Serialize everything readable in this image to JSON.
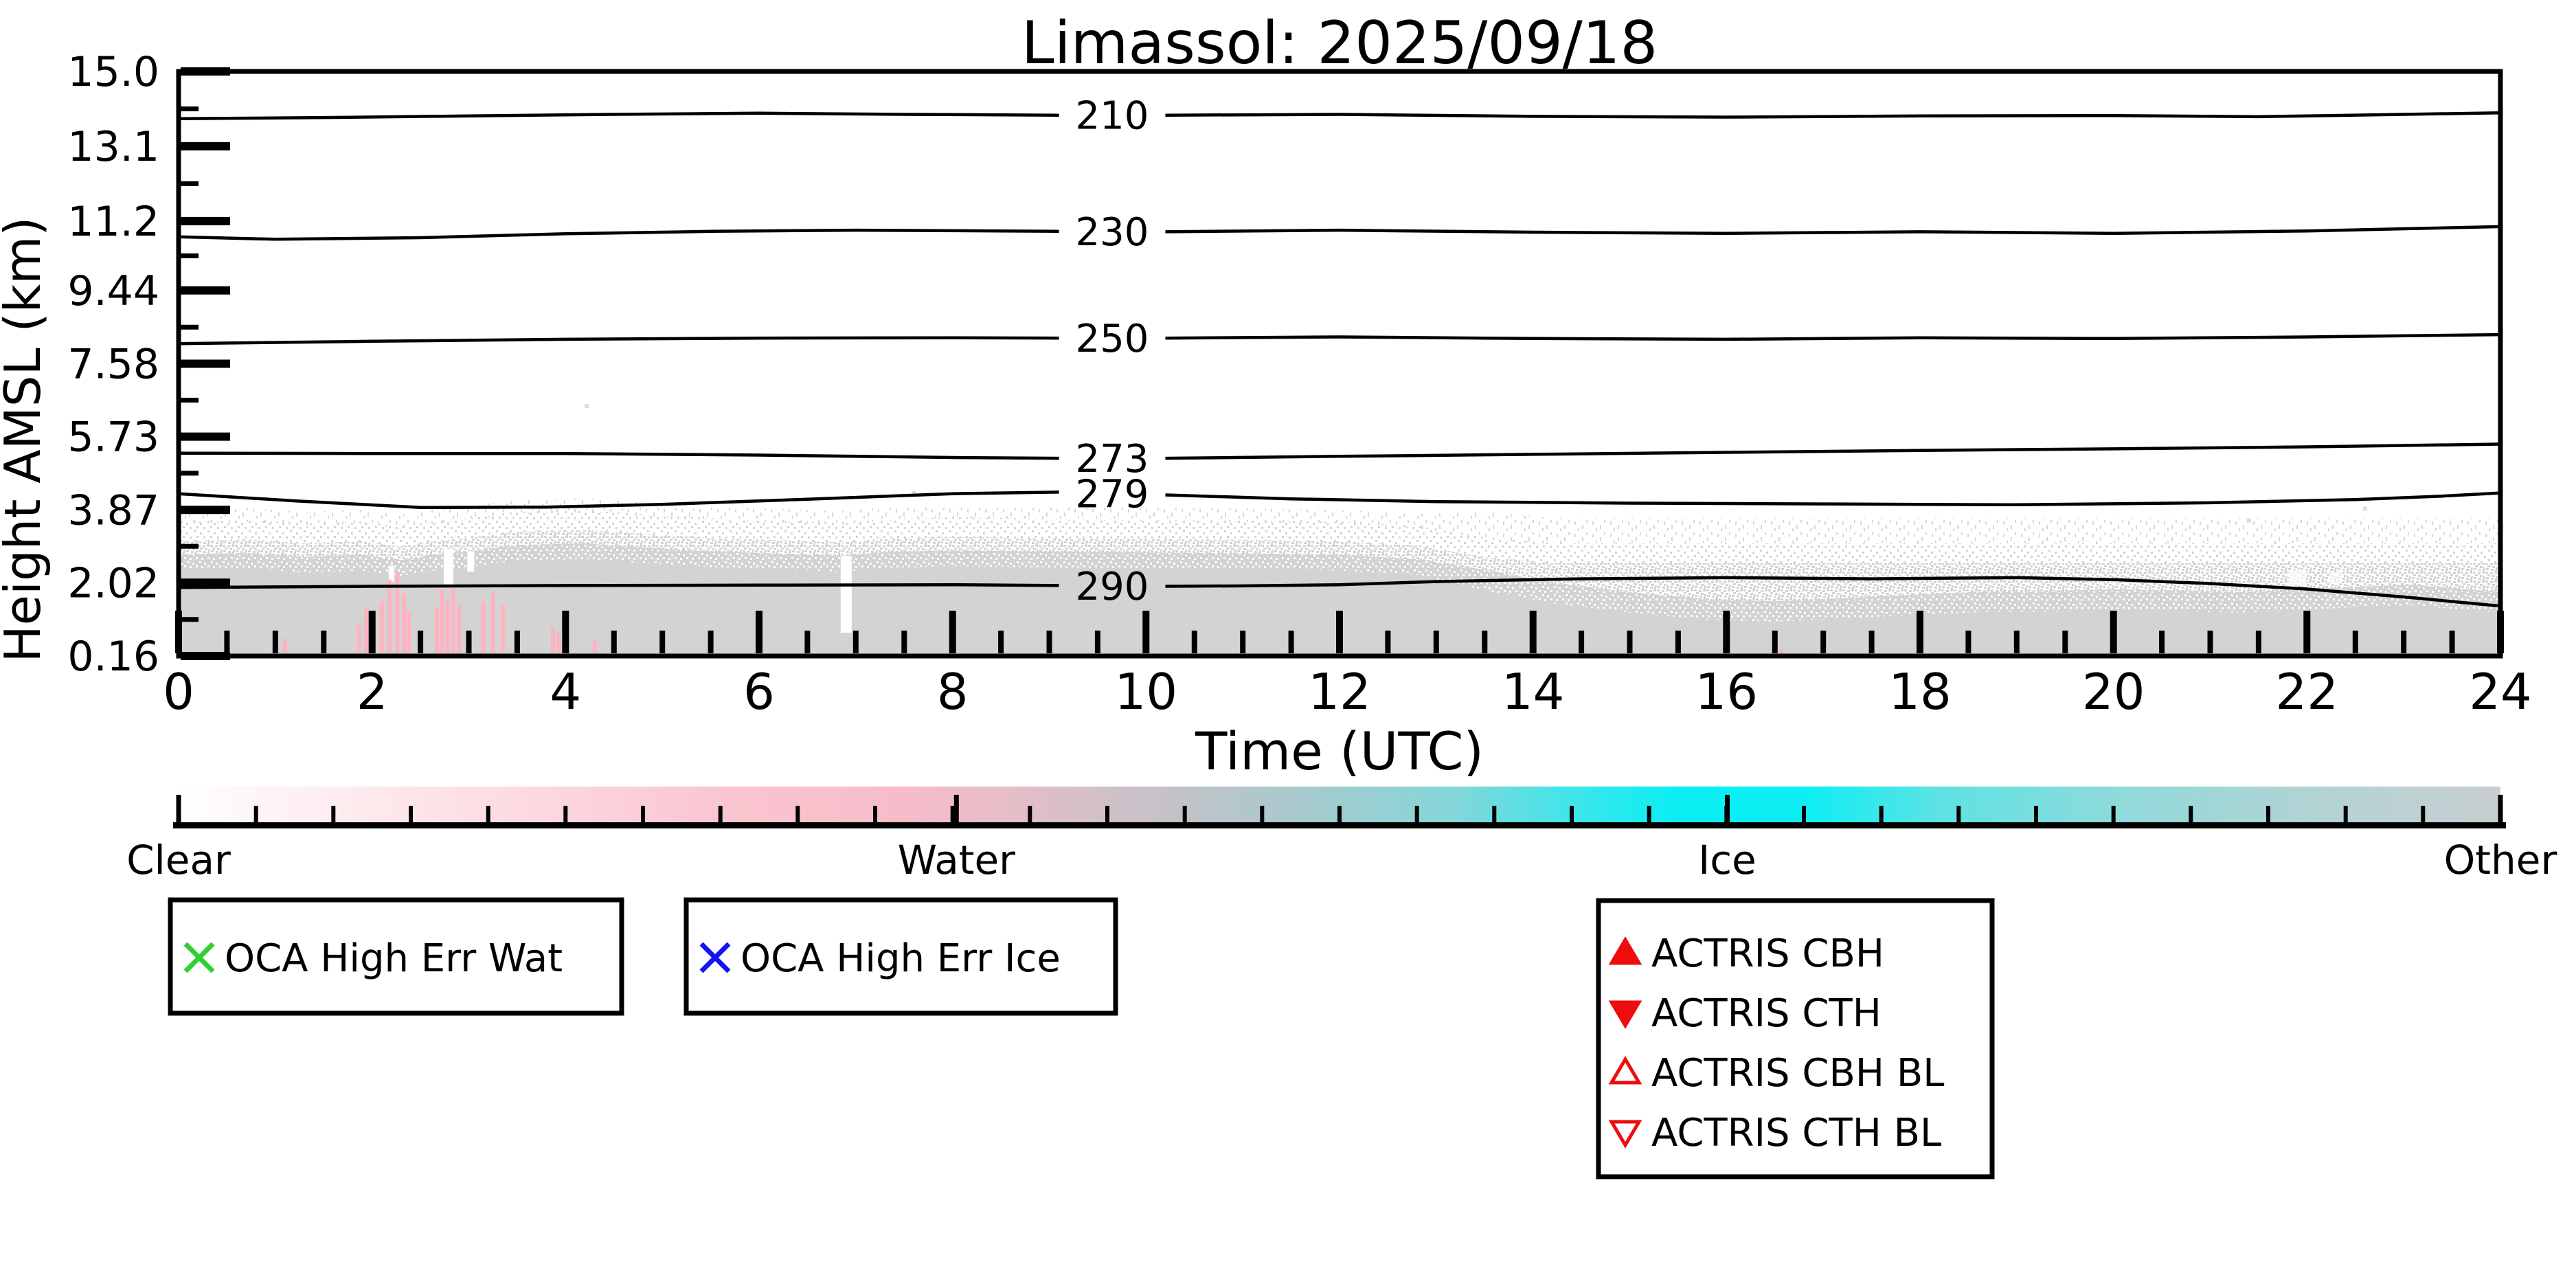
{
  "title": "Limassol: 2025/09/18",
  "chart_data": {
    "type": "heatmap",
    "title": "Limassol: 2025/09/18",
    "xlabel": "Time (UTC)",
    "ylabel": "Height AMSL (km)",
    "xlim": [
      0,
      24
    ],
    "x_tick_labels": [
      "0",
      "2",
      "4",
      "6",
      "8",
      "10",
      "12",
      "14",
      "16",
      "18",
      "20",
      "22",
      "24"
    ],
    "x_minor_tick_step_hours": 0.5,
    "y_tick_labels": [
      "15.0",
      "13.1",
      "11.2",
      "9.44",
      "7.58",
      "5.73",
      "3.87",
      "2.02",
      "0.16"
    ],
    "y_tick_values_km": [
      15.0,
      13.1,
      11.2,
      9.44,
      7.58,
      5.73,
      3.87,
      2.02,
      0.16
    ],
    "ylim_km": [
      0.16,
      15.0
    ],
    "grid": false,
    "classification_colorbar": {
      "labels": [
        {
          "text": "Clear",
          "frac": 0.0
        },
        {
          "text": "Water",
          "frac": 0.335
        },
        {
          "text": "Ice",
          "frac": 0.667
        },
        {
          "text": "Other",
          "frac": 1.0
        }
      ],
      "minor_tick_count": 30,
      "gradient_stops": [
        {
          "offset": 0.0,
          "color": "#ffffff"
        },
        {
          "offset": 0.04,
          "color": "#fef3f5"
        },
        {
          "offset": 0.14,
          "color": "#fcdce2"
        },
        {
          "offset": 0.24,
          "color": "#fac4cf"
        },
        {
          "offset": 0.31,
          "color": "#f8bcc9"
        },
        {
          "offset": 0.37,
          "color": "#e0bec7"
        },
        {
          "offset": 0.43,
          "color": "#c2c2c8"
        },
        {
          "offset": 0.49,
          "color": "#a4cbce"
        },
        {
          "offset": 0.55,
          "color": "#83d7d9"
        },
        {
          "offset": 0.6,
          "color": "#3fe5ea"
        },
        {
          "offset": 0.645,
          "color": "#0aeef4"
        },
        {
          "offset": 0.7,
          "color": "#0ceef4"
        },
        {
          "offset": 0.76,
          "color": "#5fe2e3"
        },
        {
          "offset": 0.84,
          "color": "#92d9da"
        },
        {
          "offset": 0.92,
          "color": "#b2d3d4"
        },
        {
          "offset": 1.0,
          "color": "#c8ced1"
        }
      ]
    },
    "temperature_contours_K": [
      {
        "level": "210",
        "label_t": 9.65,
        "left": [
          [
            0,
            13.8
          ],
          [
            1.5,
            13.83
          ],
          [
            3,
            13.87
          ],
          [
            4.5,
            13.91
          ],
          [
            6,
            13.94
          ],
          [
            7.5,
            13.91
          ],
          [
            9.1,
            13.89
          ]
        ],
        "right": [
          [
            10.2,
            13.89
          ],
          [
            12,
            13.91
          ],
          [
            14,
            13.86
          ],
          [
            16,
            13.84
          ],
          [
            18,
            13.87
          ],
          [
            20,
            13.88
          ],
          [
            21.5,
            13.85
          ],
          [
            23,
            13.91
          ],
          [
            24,
            13.95
          ]
        ]
      },
      {
        "level": "230",
        "label_t": 9.65,
        "left": [
          [
            0,
            10.8
          ],
          [
            1,
            10.74
          ],
          [
            2.5,
            10.78
          ],
          [
            4,
            10.88
          ],
          [
            5.5,
            10.94
          ],
          [
            7,
            10.97
          ],
          [
            8.5,
            10.95
          ],
          [
            9.1,
            10.94
          ]
        ],
        "right": [
          [
            10.2,
            10.93
          ],
          [
            12,
            10.97
          ],
          [
            14,
            10.92
          ],
          [
            16,
            10.89
          ],
          [
            18,
            10.93
          ],
          [
            20,
            10.89
          ],
          [
            22,
            10.95
          ],
          [
            24,
            11.06
          ]
        ]
      },
      {
        "level": "250",
        "label_t": 9.65,
        "left": [
          [
            0,
            8.09
          ],
          [
            2,
            8.15
          ],
          [
            4,
            8.2
          ],
          [
            6,
            8.23
          ],
          [
            8,
            8.24
          ],
          [
            9.1,
            8.23
          ]
        ],
        "right": [
          [
            10.2,
            8.23
          ],
          [
            12,
            8.26
          ],
          [
            14,
            8.22
          ],
          [
            16,
            8.2
          ],
          [
            18,
            8.24
          ],
          [
            20,
            8.22
          ],
          [
            22,
            8.26
          ],
          [
            24,
            8.32
          ]
        ]
      },
      {
        "level": "273",
        "label_t": 9.65,
        "left": [
          [
            0,
            5.31
          ],
          [
            2,
            5.3
          ],
          [
            4,
            5.3
          ],
          [
            6,
            5.26
          ],
          [
            8,
            5.2
          ],
          [
            9.1,
            5.18
          ]
        ],
        "right": [
          [
            10.2,
            5.18
          ],
          [
            12,
            5.23
          ],
          [
            14,
            5.28
          ],
          [
            16,
            5.33
          ],
          [
            18,
            5.38
          ],
          [
            20,
            5.42
          ],
          [
            22,
            5.47
          ],
          [
            24,
            5.54
          ]
        ]
      },
      {
        "level": "279",
        "label_t": 9.65,
        "left": [
          [
            0,
            4.28
          ],
          [
            1.2,
            4.1
          ],
          [
            2.5,
            3.93
          ],
          [
            3.8,
            3.94
          ],
          [
            5,
            4.01
          ],
          [
            6.5,
            4.14
          ],
          [
            8,
            4.28
          ],
          [
            9.1,
            4.32
          ]
        ],
        "right": [
          [
            10.2,
            4.25
          ],
          [
            11.5,
            4.15
          ],
          [
            13,
            4.08
          ],
          [
            15,
            4.04
          ],
          [
            17,
            4.02
          ],
          [
            19,
            4.0
          ],
          [
            21,
            4.05
          ],
          [
            22.5,
            4.13
          ],
          [
            23.4,
            4.22
          ],
          [
            24,
            4.3
          ]
        ]
      },
      {
        "level": "290",
        "label_t": 9.65,
        "left": [
          [
            0,
            1.9
          ],
          [
            2,
            1.93
          ],
          [
            4,
            1.95
          ],
          [
            6,
            1.96
          ],
          [
            8,
            1.97
          ],
          [
            9.1,
            1.95
          ]
        ],
        "right": [
          [
            10.2,
            1.93
          ],
          [
            11,
            1.94
          ],
          [
            12,
            1.97
          ],
          [
            13,
            2.05
          ],
          [
            14.5,
            2.12
          ],
          [
            16,
            2.15
          ],
          [
            17.5,
            2.12
          ],
          [
            19,
            2.15
          ],
          [
            20,
            2.1
          ],
          [
            21,
            2.0
          ],
          [
            22,
            1.86
          ],
          [
            23,
            1.66
          ],
          [
            24,
            1.43
          ]
        ]
      }
    ],
    "cloud_band": {
      "base_km": 0.18,
      "top_profile": [
        [
          0,
          2.74
        ],
        [
          0.7,
          2.78
        ],
        [
          1.3,
          2.68
        ],
        [
          1.9,
          2.73
        ],
        [
          2.3,
          2.6
        ],
        [
          2.6,
          2.72
        ],
        [
          3.0,
          2.82
        ],
        [
          3.5,
          2.98
        ],
        [
          4.2,
          3.02
        ],
        [
          4.8,
          2.92
        ],
        [
          5.5,
          2.82
        ],
        [
          6.2,
          2.76
        ],
        [
          6.85,
          2.7
        ],
        [
          7.3,
          2.8
        ],
        [
          8,
          2.84
        ],
        [
          9,
          2.81
        ],
        [
          10,
          2.79
        ],
        [
          11,
          2.77
        ],
        [
          12,
          2.73
        ],
        [
          12.8,
          2.62
        ],
        [
          13.5,
          2.35
        ],
        [
          14.2,
          2.02
        ],
        [
          15,
          1.78
        ],
        [
          15.8,
          1.6
        ],
        [
          16.5,
          1.55
        ],
        [
          17.2,
          1.63
        ],
        [
          18,
          1.73
        ],
        [
          18.7,
          1.8
        ],
        [
          19.3,
          1.8
        ],
        [
          20,
          1.86
        ],
        [
          20.7,
          1.82
        ],
        [
          21.3,
          1.78
        ],
        [
          21.9,
          1.84
        ],
        [
          22.5,
          1.92
        ],
        [
          23.1,
          1.97
        ],
        [
          23.6,
          1.86
        ],
        [
          24,
          1.78
        ]
      ],
      "isolated_flecks": [
        [
          4.22,
          6.51
        ],
        [
          7.6,
          4.3
        ],
        [
          21.4,
          3.6
        ],
        [
          22.6,
          3.9
        ]
      ]
    },
    "water_streaks": [
      [
        1.1,
        0.6
      ],
      [
        1.86,
        0.95
      ],
      [
        1.94,
        1.35
      ],
      [
        2.02,
        1.1
      ],
      [
        2.1,
        1.55
      ],
      [
        2.18,
        2.1
      ],
      [
        2.26,
        2.3
      ],
      [
        2.33,
        1.75
      ],
      [
        2.38,
        1.3
      ],
      [
        2.67,
        1.4
      ],
      [
        2.72,
        1.85
      ],
      [
        2.78,
        1.6
      ],
      [
        2.84,
        1.88
      ],
      [
        2.9,
        1.45
      ],
      [
        3.15,
        1.55
      ],
      [
        3.25,
        1.8
      ],
      [
        3.35,
        1.45
      ],
      [
        3.87,
        0.9
      ],
      [
        3.93,
        0.75
      ],
      [
        4.3,
        0.55
      ],
      [
        16.49,
        0.42
      ],
      [
        16.57,
        0.33
      ]
    ],
    "clear_gaps": [
      [
        2.2,
        8,
        2.45,
        2.05,
        1
      ],
      [
        2.79,
        14,
        2.88,
        1.95,
        1
      ],
      [
        3.02,
        10,
        2.82,
        2.3,
        1
      ],
      [
        6.9,
        16,
        2.7,
        0.75,
        1
      ],
      [
        21.9,
        26,
        2.35,
        1.95,
        0.7
      ],
      [
        22.3,
        18,
        2.3,
        2.0,
        0.6
      ]
    ]
  },
  "legend": {
    "boxes": [
      {
        "items": [
          {
            "marker": "x",
            "color": "#2fd02f",
            "label": "OCA High Err Wat"
          }
        ]
      },
      {
        "items": [
          {
            "marker": "x",
            "color": "#1414f0",
            "label": "OCA High Err Ice"
          }
        ]
      },
      {
        "items": [
          {
            "marker": "triangle-up-filled",
            "color": "#ee0d0d",
            "label": "ACTRIS CBH"
          },
          {
            "marker": "triangle-down-filled",
            "color": "#ee0d0d",
            "label": "ACTRIS CTH"
          },
          {
            "marker": "triangle-up-open",
            "color": "#ee0d0d",
            "label": "ACTRIS CBH BL"
          },
          {
            "marker": "triangle-down-open",
            "color": "#ee0d0d",
            "label": "ACTRIS CTH BL"
          }
        ]
      }
    ]
  },
  "colors": {
    "background": "#ffffff",
    "axis": "#000000",
    "cloud_gray": "#d3d3d3",
    "water_pink": "#ffb3c1"
  }
}
